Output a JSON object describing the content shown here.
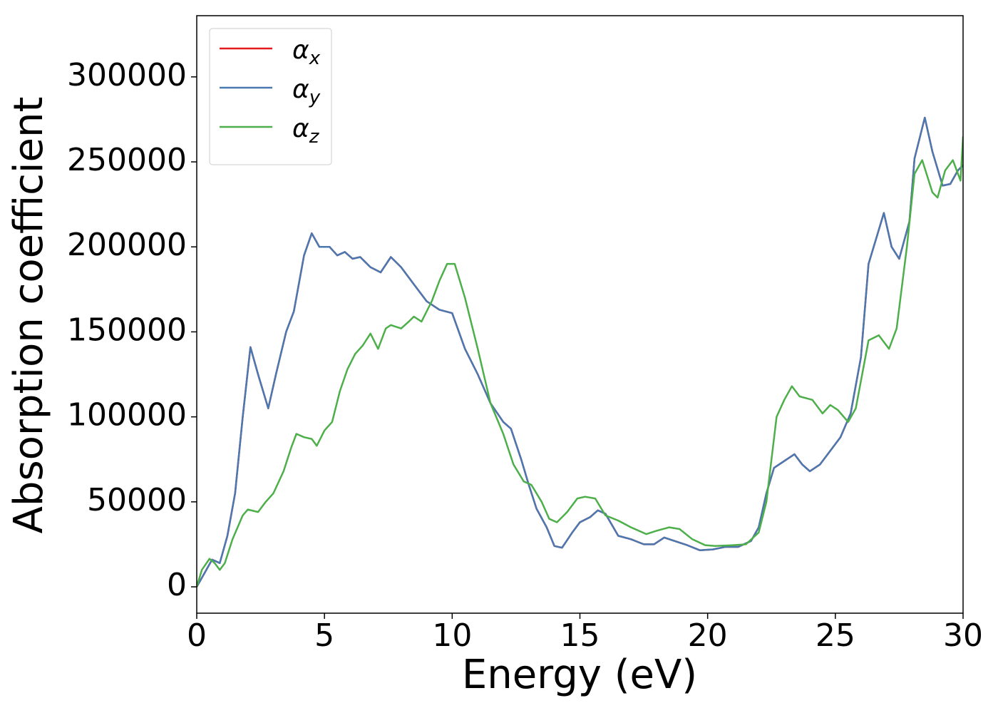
{
  "chart_data": {
    "type": "line",
    "xlabel": "Energy (eV)",
    "ylabel": "Absorption coefficient",
    "xlim": [
      0,
      30
    ],
    "xticks": [
      0,
      5,
      10,
      15,
      20,
      25,
      30
    ],
    "ylim": [
      -15500,
      336000
    ],
    "yticks": [
      0,
      50000,
      100000,
      150000,
      200000,
      250000,
      300000
    ],
    "grid": false,
    "legend": "upper left",
    "series": [
      {
        "name": "αx",
        "color": "#e41a1c",
        "x": [
          0,
          0.3,
          0.6,
          0.9,
          1.2,
          1.5,
          1.8,
          2.1,
          2.4,
          2.8,
          3.1,
          3.5,
          3.8,
          4.2,
          4.5,
          4.8,
          5.2,
          5.5,
          5.8,
          6.1,
          6.4,
          6.8,
          7.2,
          7.6,
          8.0,
          8.5,
          9.0,
          9.5,
          10.0,
          10.5,
          11.0,
          11.5,
          12.0,
          12.3,
          12.7,
          13.0,
          13.3,
          13.7,
          14.0,
          14.3,
          14.7,
          15.0,
          15.4,
          15.7,
          16.0,
          16.5,
          17.0,
          17.5,
          17.9,
          18.3,
          18.7,
          19.2,
          19.7,
          20.2,
          20.7,
          21.2,
          21.7,
          22.0,
          22.3,
          22.6,
          23.0,
          23.4,
          23.7,
          24.0,
          24.4,
          24.8,
          25.2,
          25.6,
          26.0,
          26.3,
          26.6,
          26.9,
          27.2,
          27.5,
          27.9,
          28.1,
          28.5,
          28.8,
          29.2,
          29.5,
          29.8,
          30.0
        ],
        "values": [
          0,
          8000,
          16000,
          14000,
          30000,
          55000,
          100000,
          141000,
          125000,
          105000,
          125000,
          150000,
          162000,
          195000,
          208000,
          200000,
          200000,
          195000,
          197000,
          193000,
          194000,
          188000,
          185000,
          194000,
          188000,
          178000,
          168000,
          163000,
          161000,
          140000,
          125000,
          108000,
          97000,
          93000,
          75000,
          60000,
          46000,
          35000,
          24000,
          23000,
          32000,
          38000,
          41000,
          45000,
          43000,
          30000,
          28000,
          25000,
          25000,
          29000,
          27000,
          24500,
          21500,
          22000,
          23500,
          23500,
          27000,
          35000,
          55000,
          70000,
          74000,
          78000,
          72000,
          68000,
          72000,
          80000,
          88000,
          102000,
          135000,
          190000,
          205000,
          220000,
          200000,
          193000,
          215000,
          252000,
          276000,
          256000,
          236000,
          237000,
          245000,
          248000
        ]
      },
      {
        "name": "αy",
        "color": "#4a78b0",
        "x": [
          0,
          0.3,
          0.6,
          0.9,
          1.2,
          1.5,
          1.8,
          2.1,
          2.4,
          2.8,
          3.1,
          3.5,
          3.8,
          4.2,
          4.5,
          4.8,
          5.2,
          5.5,
          5.8,
          6.1,
          6.4,
          6.8,
          7.2,
          7.6,
          8.0,
          8.5,
          9.0,
          9.5,
          10.0,
          10.5,
          11.0,
          11.5,
          12.0,
          12.3,
          12.7,
          13.0,
          13.3,
          13.7,
          14.0,
          14.3,
          14.7,
          15.0,
          15.4,
          15.7,
          16.0,
          16.5,
          17.0,
          17.5,
          17.9,
          18.3,
          18.7,
          19.2,
          19.7,
          20.2,
          20.7,
          21.2,
          21.7,
          22.0,
          22.3,
          22.6,
          23.0,
          23.4,
          23.7,
          24.0,
          24.4,
          24.8,
          25.2,
          25.6,
          26.0,
          26.3,
          26.6,
          26.9,
          27.2,
          27.5,
          27.9,
          28.1,
          28.5,
          28.8,
          29.2,
          29.5,
          29.8,
          30.0
        ],
        "values": [
          0,
          8000,
          16000,
          14000,
          30000,
          55000,
          100000,
          141000,
          125000,
          105000,
          125000,
          150000,
          162000,
          195000,
          208000,
          200000,
          200000,
          195000,
          197000,
          193000,
          194000,
          188000,
          185000,
          194000,
          188000,
          178000,
          168000,
          163000,
          161000,
          140000,
          125000,
          108000,
          97000,
          93000,
          75000,
          60000,
          46000,
          35000,
          24000,
          23000,
          32000,
          38000,
          41000,
          45000,
          43000,
          30000,
          28000,
          25000,
          25000,
          29000,
          27000,
          24500,
          21500,
          22000,
          23500,
          23500,
          27000,
          35000,
          55000,
          70000,
          74000,
          78000,
          72000,
          68000,
          72000,
          80000,
          88000,
          102000,
          135000,
          190000,
          205000,
          220000,
          200000,
          193000,
          215000,
          252000,
          276000,
          256000,
          236000,
          237000,
          245000,
          248000
        ]
      },
      {
        "name": "αz",
        "color": "#4daf4a",
        "x": [
          0,
          0.2,
          0.5,
          0.7,
          0.9,
          1.1,
          1.4,
          1.8,
          2.0,
          2.4,
          2.7,
          3.0,
          3.4,
          3.7,
          3.9,
          4.2,
          4.5,
          4.7,
          5.0,
          5.3,
          5.6,
          5.9,
          6.2,
          6.5,
          6.8,
          7.1,
          7.4,
          7.6,
          8.0,
          8.3,
          8.5,
          8.8,
          9.2,
          9.5,
          9.8,
          10.1,
          10.5,
          11.0,
          11.5,
          12.0,
          12.4,
          12.8,
          13.1,
          13.5,
          13.8,
          14.1,
          14.5,
          14.9,
          15.2,
          15.6,
          16.0,
          16.5,
          17.0,
          17.6,
          18.0,
          18.5,
          18.9,
          19.4,
          19.9,
          20.3,
          21.0,
          21.5,
          22.0,
          22.3,
          22.7,
          23.0,
          23.3,
          23.6,
          24.1,
          24.5,
          24.8,
          25.1,
          25.5,
          25.8,
          26.3,
          26.7,
          27.1,
          27.4,
          27.8,
          28.1,
          28.4,
          28.8,
          29.0,
          29.3,
          29.6,
          29.9,
          30.0
        ],
        "values": [
          0,
          10000,
          16500,
          14000,
          10000,
          14000,
          28000,
          42000,
          45500,
          44000,
          50000,
          55000,
          68000,
          82000,
          90000,
          88000,
          87000,
          83000,
          92000,
          97000,
          115000,
          128000,
          137000,
          142000,
          149000,
          140000,
          152000,
          154000,
          152000,
          156000,
          159000,
          156000,
          168000,
          180000,
          190000,
          190000,
          170000,
          140000,
          108000,
          90000,
          72000,
          62000,
          60000,
          50000,
          40000,
          38000,
          44000,
          52000,
          53000,
          52000,
          42000,
          39000,
          35000,
          31000,
          33000,
          35000,
          34000,
          28000,
          24500,
          24000,
          24500,
          25000,
          32000,
          50000,
          100000,
          110000,
          118000,
          112000,
          110000,
          102000,
          107000,
          104000,
          97000,
          105000,
          145000,
          148000,
          140000,
          152000,
          200000,
          243000,
          251000,
          232000,
          229000,
          245000,
          251000,
          239000,
          265000
        ]
      }
    ]
  }
}
